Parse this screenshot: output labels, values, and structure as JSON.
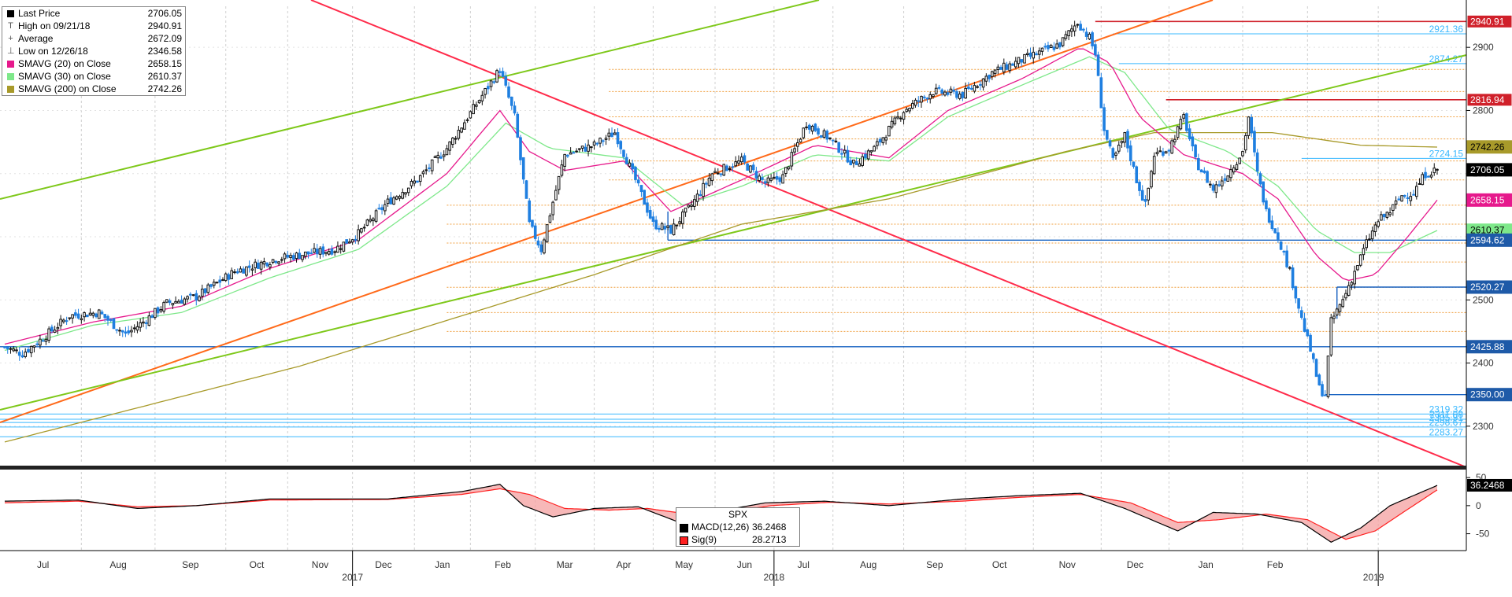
{
  "legend": {
    "items": [
      {
        "label": "Last Price",
        "value": "2706.05",
        "color": "#000000",
        "glyph": "square"
      },
      {
        "label": "High on 09/21/18",
        "value": "2940.91",
        "glyph": "T"
      },
      {
        "label": "Average",
        "value": "2672.09",
        "glyph": "+"
      },
      {
        "label": "Low on 12/26/18",
        "value": "2346.58",
        "glyph": "⊥"
      },
      {
        "label": "SMAVG (20)  on Close",
        "value": "2658.15",
        "color": "#e6198c",
        "glyph": "square"
      },
      {
        "label": "SMAVG (30)  on Close",
        "value": "2610.37",
        "color": "#7ee88a",
        "glyph": "square"
      },
      {
        "label": "SMAVG (200)  on Close",
        "value": "2742.26",
        "color": "#a89a2a",
        "glyph": "square"
      }
    ]
  },
  "macd_box": {
    "title": "SPX",
    "items": [
      {
        "label": "MACD(12,26)",
        "value": "36.2468",
        "color": "#000000"
      },
      {
        "label": "Sig(9)",
        "value": "28.2713",
        "color": "#ff2020"
      }
    ]
  },
  "chart_data": {
    "type": "candlestick",
    "instrument": "SPX",
    "x_labels": {
      "months": [
        "Jul",
        "Aug",
        "Sep",
        "Oct",
        "Nov",
        "Dec",
        "Jan",
        "Feb",
        "Mar",
        "Apr",
        "May",
        "Jun",
        "Jul",
        "Aug",
        "Sep",
        "Oct",
        "Nov",
        "Dec",
        "Jan",
        "Feb"
      ],
      "years": [
        "2017",
        "2018",
        "2019"
      ]
    },
    "price_axis": {
      "ylim": [
        2240,
        2965
      ],
      "ticks": [
        2300,
        2400,
        2500,
        2600,
        2700,
        2800,
        2900
      ]
    },
    "price_tags": [
      {
        "value": "2940.91",
        "style": "red"
      },
      {
        "value": "2816.94",
        "style": "red"
      },
      {
        "value": "2742.26",
        "style": "olive"
      },
      {
        "value": "2706.05",
        "style": "black"
      },
      {
        "value": "2658.15",
        "style": "magenta"
      },
      {
        "value": "2610.37",
        "style": "green"
      },
      {
        "value": "2594.62",
        "style": "blue"
      },
      {
        "value": "2520.27",
        "style": "blue"
      },
      {
        "value": "2425.88",
        "style": "blue"
      },
      {
        "value": "2350.00",
        "style": "blue"
      }
    ],
    "level_labels": [
      "2921.36",
      "2874.27",
      "2724.15",
      "2319.32",
      "2311.08",
      "2305.91",
      "2298.67",
      "2283.27"
    ],
    "price_close_anchors": [
      {
        "t": 0,
        "v": 2425
      },
      {
        "t": 6,
        "v": 2415
      },
      {
        "t": 13,
        "v": 2440
      },
      {
        "t": 22,
        "v": 2475
      },
      {
        "t": 32,
        "v": 2480
      },
      {
        "t": 41,
        "v": 2445
      },
      {
        "t": 47,
        "v": 2465
      },
      {
        "t": 55,
        "v": 2495
      },
      {
        "t": 65,
        "v": 2505
      },
      {
        "t": 78,
        "v": 2545
      },
      {
        "t": 92,
        "v": 2565
      },
      {
        "t": 105,
        "v": 2575
      },
      {
        "t": 112,
        "v": 2580
      },
      {
        "t": 120,
        "v": 2605
      },
      {
        "t": 130,
        "v": 2655
      },
      {
        "t": 140,
        "v": 2690
      },
      {
        "t": 150,
        "v": 2740
      },
      {
        "t": 160,
        "v": 2810
      },
      {
        "t": 168,
        "v": 2865
      },
      {
        "t": 173,
        "v": 2790
      },
      {
        "t": 178,
        "v": 2620
      },
      {
        "t": 182,
        "v": 2580
      },
      {
        "t": 190,
        "v": 2730
      },
      {
        "t": 200,
        "v": 2745
      },
      {
        "t": 207,
        "v": 2765
      },
      {
        "t": 214,
        "v": 2690
      },
      {
        "t": 220,
        "v": 2620
      },
      {
        "t": 226,
        "v": 2610
      },
      {
        "t": 233,
        "v": 2650
      },
      {
        "t": 240,
        "v": 2700
      },
      {
        "t": 250,
        "v": 2720
      },
      {
        "t": 258,
        "v": 2685
      },
      {
        "t": 264,
        "v": 2695
      },
      {
        "t": 272,
        "v": 2780
      },
      {
        "t": 280,
        "v": 2755
      },
      {
        "t": 288,
        "v": 2715
      },
      {
        "t": 295,
        "v": 2740
      },
      {
        "t": 305,
        "v": 2800
      },
      {
        "t": 315,
        "v": 2830
      },
      {
        "t": 325,
        "v": 2825
      },
      {
        "t": 335,
        "v": 2860
      },
      {
        "t": 345,
        "v": 2880
      },
      {
        "t": 358,
        "v": 2905
      },
      {
        "t": 364,
        "v": 2940
      },
      {
        "t": 368,
        "v": 2915
      },
      {
        "t": 370,
        "v": 2890
      },
      {
        "t": 373,
        "v": 2770
      },
      {
        "t": 376,
        "v": 2720
      },
      {
        "t": 380,
        "v": 2760
      },
      {
        "t": 384,
        "v": 2690
      },
      {
        "t": 387,
        "v": 2650
      },
      {
        "t": 390,
        "v": 2730
      },
      {
        "t": 395,
        "v": 2740
      },
      {
        "t": 400,
        "v": 2790
      },
      {
        "t": 404,
        "v": 2720
      },
      {
        "t": 410,
        "v": 2675
      },
      {
        "t": 415,
        "v": 2700
      },
      {
        "t": 420,
        "v": 2735
      },
      {
        "t": 422,
        "v": 2790
      },
      {
        "t": 425,
        "v": 2700
      },
      {
        "t": 428,
        "v": 2640
      },
      {
        "t": 432,
        "v": 2600
      },
      {
        "t": 436,
        "v": 2545
      },
      {
        "t": 440,
        "v": 2470
      },
      {
        "t": 443,
        "v": 2420
      },
      {
        "t": 446,
        "v": 2360
      },
      {
        "t": 448,
        "v": 2350
      },
      {
        "t": 450,
        "v": 2465
      },
      {
        "t": 454,
        "v": 2500
      },
      {
        "t": 458,
        "v": 2545
      },
      {
        "t": 462,
        "v": 2590
      },
      {
        "t": 466,
        "v": 2625
      },
      {
        "t": 470,
        "v": 2640
      },
      {
        "t": 474,
        "v": 2665
      },
      {
        "t": 478,
        "v": 2670
      },
      {
        "t": 482,
        "v": 2700
      },
      {
        "t": 486,
        "v": 2706
      }
    ],
    "sma20_anchors": [
      {
        "t": 0,
        "v": 2430
      },
      {
        "t": 30,
        "v": 2465
      },
      {
        "t": 60,
        "v": 2490
      },
      {
        "t": 90,
        "v": 2550
      },
      {
        "t": 120,
        "v": 2595
      },
      {
        "t": 150,
        "v": 2700
      },
      {
        "t": 168,
        "v": 2800
      },
      {
        "t": 178,
        "v": 2735
      },
      {
        "t": 190,
        "v": 2705
      },
      {
        "t": 210,
        "v": 2720
      },
      {
        "t": 226,
        "v": 2640
      },
      {
        "t": 250,
        "v": 2690
      },
      {
        "t": 275,
        "v": 2745
      },
      {
        "t": 300,
        "v": 2725
      },
      {
        "t": 320,
        "v": 2800
      },
      {
        "t": 345,
        "v": 2850
      },
      {
        "t": 365,
        "v": 2900
      },
      {
        "t": 375,
        "v": 2875
      },
      {
        "t": 385,
        "v": 2790
      },
      {
        "t": 400,
        "v": 2730
      },
      {
        "t": 420,
        "v": 2700
      },
      {
        "t": 432,
        "v": 2660
      },
      {
        "t": 445,
        "v": 2570
      },
      {
        "t": 455,
        "v": 2530
      },
      {
        "t": 465,
        "v": 2540
      },
      {
        "t": 476,
        "v": 2600
      },
      {
        "t": 486,
        "v": 2658
      }
    ],
    "sma30_anchors": [
      {
        "t": 0,
        "v": 2420
      },
      {
        "t": 30,
        "v": 2460
      },
      {
        "t": 60,
        "v": 2480
      },
      {
        "t": 90,
        "v": 2535
      },
      {
        "t": 120,
        "v": 2580
      },
      {
        "t": 150,
        "v": 2680
      },
      {
        "t": 170,
        "v": 2780
      },
      {
        "t": 185,
        "v": 2740
      },
      {
        "t": 210,
        "v": 2725
      },
      {
        "t": 230,
        "v": 2650
      },
      {
        "t": 250,
        "v": 2680
      },
      {
        "t": 275,
        "v": 2730
      },
      {
        "t": 300,
        "v": 2720
      },
      {
        "t": 320,
        "v": 2790
      },
      {
        "t": 345,
        "v": 2840
      },
      {
        "t": 368,
        "v": 2885
      },
      {
        "t": 380,
        "v": 2860
      },
      {
        "t": 395,
        "v": 2770
      },
      {
        "t": 415,
        "v": 2735
      },
      {
        "t": 432,
        "v": 2680
      },
      {
        "t": 445,
        "v": 2610
      },
      {
        "t": 458,
        "v": 2575
      },
      {
        "t": 470,
        "v": 2575
      },
      {
        "t": 486,
        "v": 2610
      }
    ],
    "sma200_anchors": [
      {
        "t": 0,
        "v": 2275
      },
      {
        "t": 100,
        "v": 2395
      },
      {
        "t": 200,
        "v": 2540
      },
      {
        "t": 250,
        "v": 2620
      },
      {
        "t": 300,
        "v": 2660
      },
      {
        "t": 360,
        "v": 2735
      },
      {
        "t": 390,
        "v": 2765
      },
      {
        "t": 430,
        "v": 2765
      },
      {
        "t": 460,
        "v": 2745
      },
      {
        "t": 486,
        "v": 2742
      }
    ],
    "macd_axis": {
      "ylim": [
        -80,
        60
      ],
      "ticks": [
        50,
        0,
        -50
      ]
    },
    "macd_anchors": [
      {
        "t": 0,
        "v": 8
      },
      {
        "t": 25,
        "v": 10
      },
      {
        "t": 45,
        "v": -5
      },
      {
        "t": 65,
        "v": 0
      },
      {
        "t": 90,
        "v": 12
      },
      {
        "t": 130,
        "v": 12
      },
      {
        "t": 155,
        "v": 25
      },
      {
        "t": 168,
        "v": 38
      },
      {
        "t": 176,
        "v": 0
      },
      {
        "t": 186,
        "v": -20
      },
      {
        "t": 200,
        "v": -5
      },
      {
        "t": 215,
        "v": -2
      },
      {
        "t": 228,
        "v": -28
      },
      {
        "t": 242,
        "v": -10
      },
      {
        "t": 258,
        "v": 5
      },
      {
        "t": 278,
        "v": 8
      },
      {
        "t": 300,
        "v": 0
      },
      {
        "t": 325,
        "v": 12
      },
      {
        "t": 345,
        "v": 18
      },
      {
        "t": 365,
        "v": 22
      },
      {
        "t": 380,
        "v": -5
      },
      {
        "t": 398,
        "v": -45
      },
      {
        "t": 410,
        "v": -12
      },
      {
        "t": 425,
        "v": -15
      },
      {
        "t": 440,
        "v": -30
      },
      {
        "t": 450,
        "v": -65
      },
      {
        "t": 460,
        "v": -40
      },
      {
        "t": 470,
        "v": 0
      },
      {
        "t": 486,
        "v": 36
      }
    ],
    "signal_anchors": [
      {
        "t": 0,
        "v": 5
      },
      {
        "t": 25,
        "v": 8
      },
      {
        "t": 45,
        "v": -2
      },
      {
        "t": 65,
        "v": 0
      },
      {
        "t": 90,
        "v": 10
      },
      {
        "t": 130,
        "v": 11
      },
      {
        "t": 155,
        "v": 20
      },
      {
        "t": 168,
        "v": 30
      },
      {
        "t": 178,
        "v": 20
      },
      {
        "t": 190,
        "v": -5
      },
      {
        "t": 205,
        "v": -8
      },
      {
        "t": 218,
        "v": -5
      },
      {
        "t": 232,
        "v": -15
      },
      {
        "t": 245,
        "v": -12
      },
      {
        "t": 260,
        "v": 0
      },
      {
        "t": 280,
        "v": 6
      },
      {
        "t": 300,
        "v": 3
      },
      {
        "t": 325,
        "v": 8
      },
      {
        "t": 345,
        "v": 15
      },
      {
        "t": 365,
        "v": 20
      },
      {
        "t": 382,
        "v": 5
      },
      {
        "t": 398,
        "v": -30
      },
      {
        "t": 412,
        "v": -25
      },
      {
        "t": 428,
        "v": -15
      },
      {
        "t": 442,
        "v": -25
      },
      {
        "t": 455,
        "v": -60
      },
      {
        "t": 465,
        "v": -45
      },
      {
        "t": 475,
        "v": -10
      },
      {
        "t": 486,
        "v": 28
      }
    ],
    "colors": {
      "up_candle": "#111111",
      "down_candle": "#1f7fe0",
      "sma20": "#e6198c",
      "sma30": "#7ee88a",
      "sma200": "#a89a2a",
      "trend_red": "#ff2b4a",
      "trend_orange": "#ff6a1a",
      "trend_green": "#7ec81a",
      "level_blue": "#1560c0",
      "level_light": "#39b8ff",
      "level_red": "#d0202a",
      "fib_orange": "#f0a040",
      "macd": "#000000",
      "signal": "#ff2020",
      "hist_neg": "#f4a0a0",
      "hist_pos": "#c8c8c8"
    }
  }
}
